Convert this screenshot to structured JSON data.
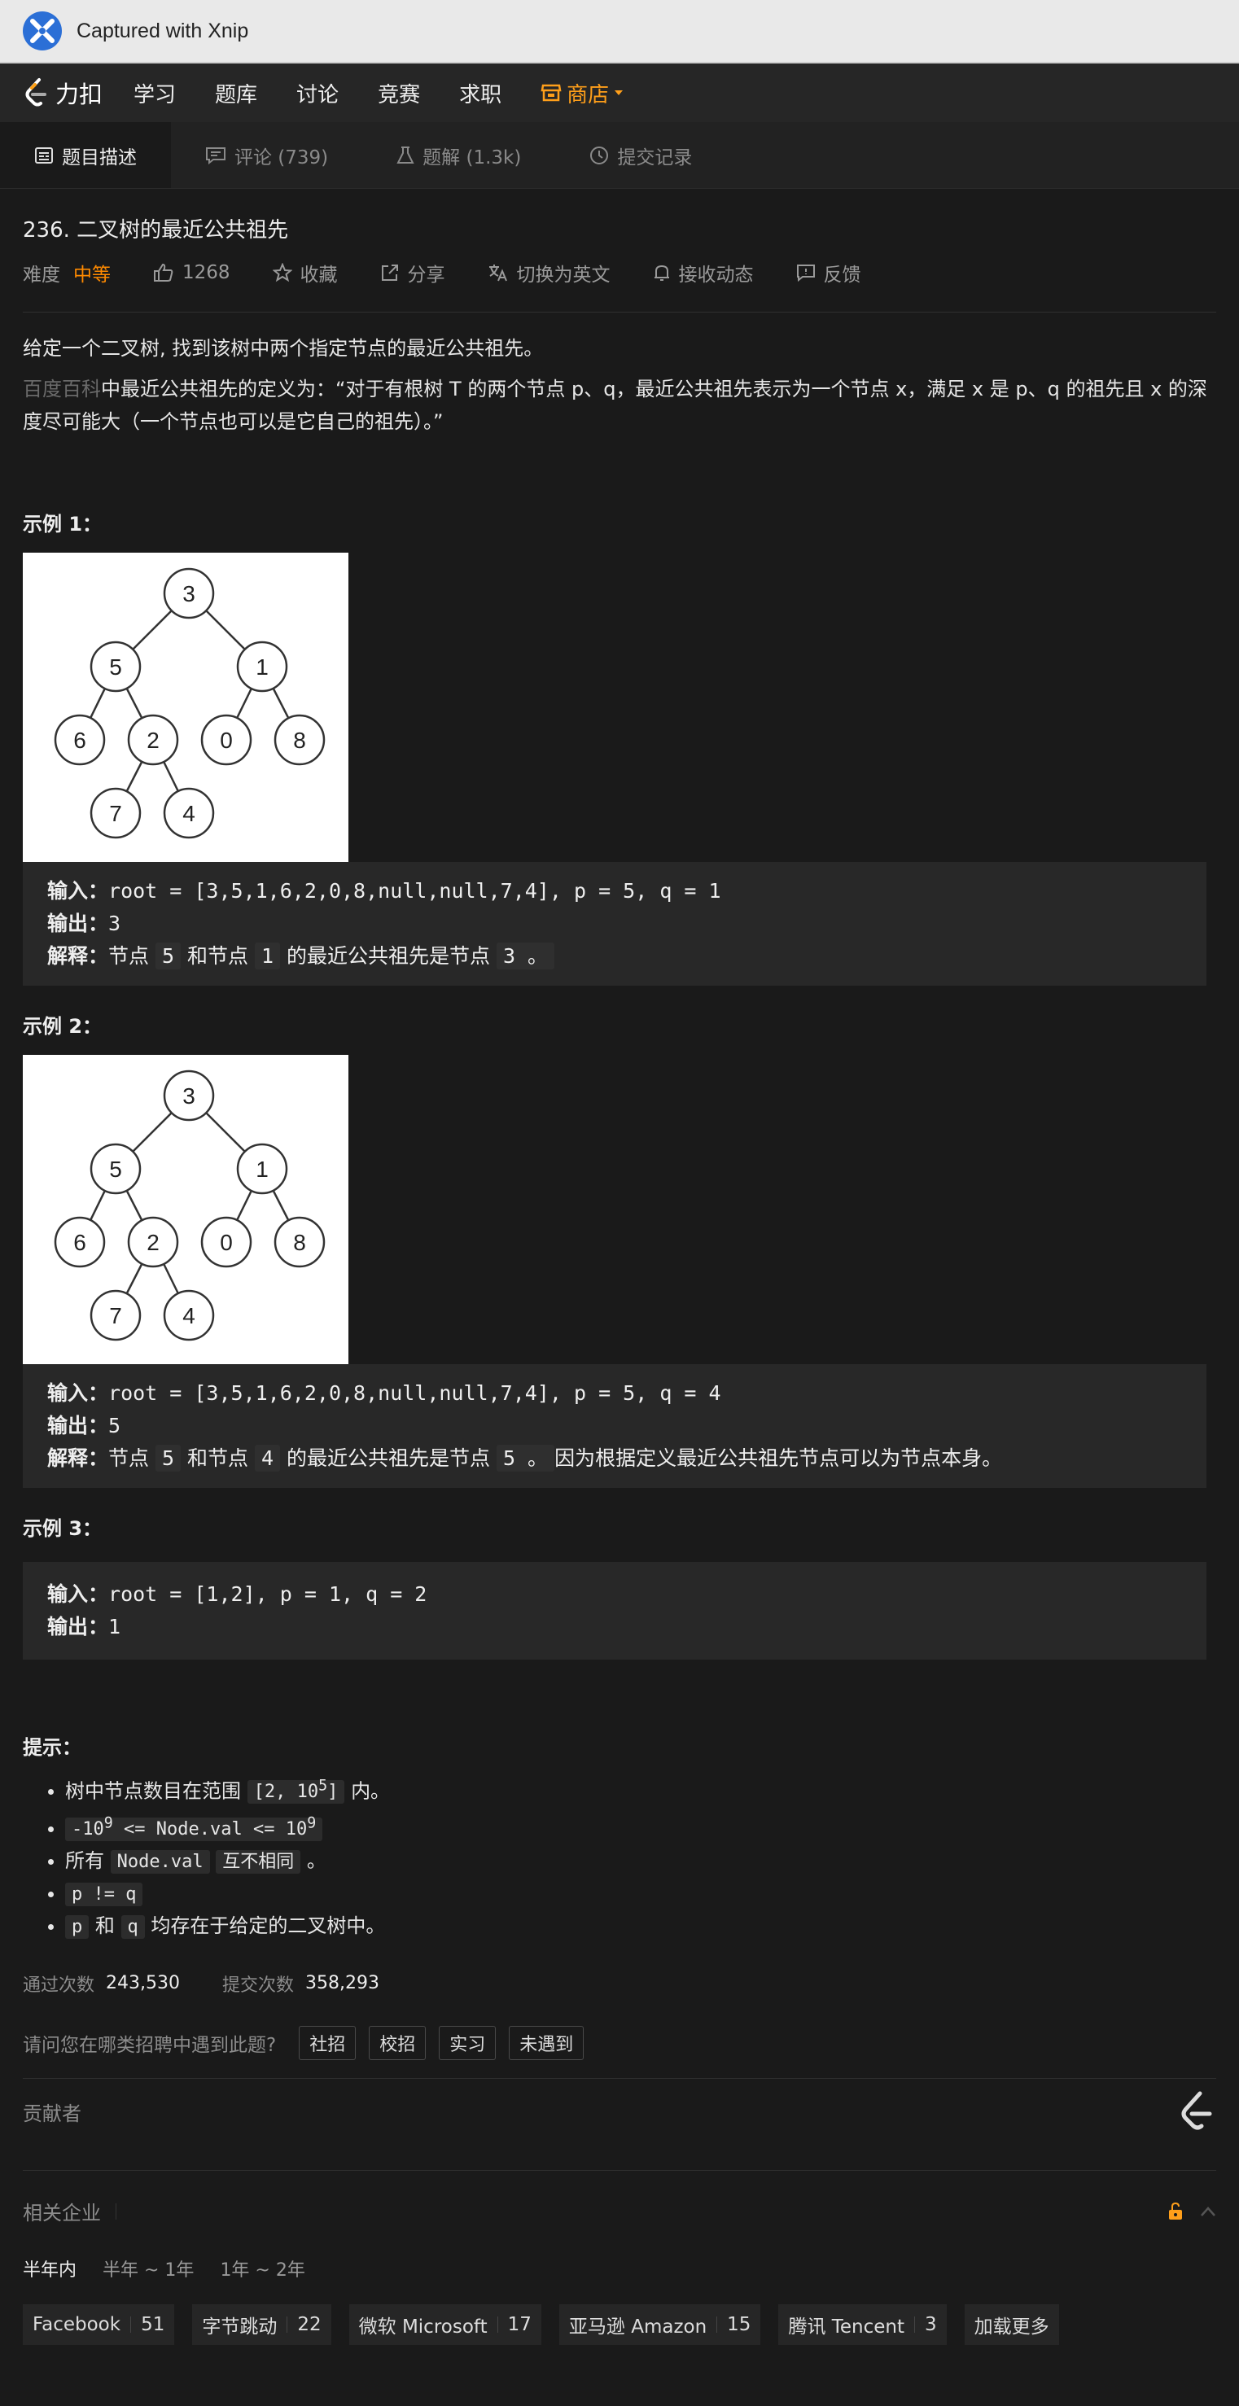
{
  "xnip": {
    "title": "Captured with Xnip"
  },
  "nav": {
    "brand": "力扣",
    "items": [
      "学习",
      "题库",
      "讨论",
      "竞赛",
      "求职"
    ],
    "shop": "商店"
  },
  "tabs": [
    {
      "label": "题目描述"
    },
    {
      "label": "评论 (739)"
    },
    {
      "label": "题解 (1.3k)"
    },
    {
      "label": "提交记录"
    }
  ],
  "problem": {
    "title": "236. 二叉树的最近公共祖先",
    "difficulty_label": "难度",
    "difficulty": "中等",
    "likes": "1268",
    "favorite": "收藏",
    "share": "分享",
    "switch_lang": "切换为英文",
    "subscribe": "接收动态",
    "feedback": "反馈",
    "desc1": "给定一个二叉树, 找到该树中两个指定节点的最近公共祖先。",
    "desc2_link": "百度百科",
    "desc2_rest": "中最近公共祖先的定义为：“对于有根树 T 的两个节点 p、q，最近公共祖先表示为一个节点 x，满足 x 是 p、q 的祖先且 x 的深度尽可能大（一个节点也可以是它自己的祖先）。”"
  },
  "tree": {
    "nodes": [
      "3",
      "5",
      "1",
      "6",
      "2",
      "0",
      "8",
      "7",
      "4"
    ]
  },
  "examples": [
    {
      "label": "示例 1：",
      "in_label": "输入：",
      "input": "root = [3,5,1,6,2,0,8,null,null,7,4], p = 5, q = 1",
      "out_label": "输出：",
      "output": "3",
      "exp_label": "解释：",
      "exp_a": "节点",
      "exp_p": "5",
      "exp_b": "和节点",
      "exp_q": "1",
      "exp_c": "的最近公共祖先是节点",
      "exp_r": "3 。",
      "exp_d": ""
    },
    {
      "label": "示例 2：",
      "in_label": "输入：",
      "input": "root = [3,5,1,6,2,0,8,null,null,7,4], p = 5, q = 4",
      "out_label": "输出：",
      "output": "5",
      "exp_label": "解释：",
      "exp_a": "节点",
      "exp_p": "5",
      "exp_b": "和节点",
      "exp_q": "4",
      "exp_c": "的最近公共祖先是节点",
      "exp_r": "5 。",
      "exp_d": "因为根据定义最近公共祖先节点可以为节点本身。"
    },
    {
      "label": "示例 3：",
      "in_label": "输入：",
      "input": "root = [1,2], p = 1, q = 2",
      "out_label": "输出：",
      "output": "1"
    }
  ],
  "hints": {
    "title": "提示：",
    "h1_a": "树中节点数目在范围",
    "h1_code_a": "[2, 10",
    "h1_sup": "5",
    "h1_code_b": "]",
    "h1_b": "内。",
    "h2_a": "-10",
    "h2_sup1": "9",
    "h2_b": " <= Node.val <= 10",
    "h2_sup2": "9",
    "h3_a": "所有",
    "h3_code1": "Node.val",
    "h3_code2": "互不相同",
    "h3_b": "。",
    "h4": "p != q",
    "h5_p": "p",
    "h5_a": "和",
    "h5_q": "q",
    "h5_b": "均存在于给定的二叉树中。"
  },
  "stats": {
    "accepted_label": "通过次数",
    "accepted": "243,530",
    "submit_label": "提交次数",
    "submit": "358,293"
  },
  "survey": {
    "question": "请问您在哪类招聘中遇到此题?",
    "options": [
      "社招",
      "校招",
      "实习",
      "未遇到"
    ]
  },
  "contributors": {
    "label": "贡献者"
  },
  "companies": {
    "label": "相关企业",
    "ranges": [
      "半年内",
      "半年 ~ 1年",
      "1年 ~ 2年"
    ],
    "list": [
      {
        "name": "Facebook",
        "count": "51"
      },
      {
        "name": "字节跳动",
        "count": "22"
      },
      {
        "name": "微软 Microsoft",
        "count": "17"
      },
      {
        "name": "亚马逊 Amazon",
        "count": "15"
      },
      {
        "name": "腾讯 Tencent",
        "count": "3"
      }
    ],
    "load_more": "加载更多"
  },
  "colors": {
    "accent": "#ff9f1a",
    "medium": "#ff8a00",
    "bg": "#1a1a1a"
  }
}
